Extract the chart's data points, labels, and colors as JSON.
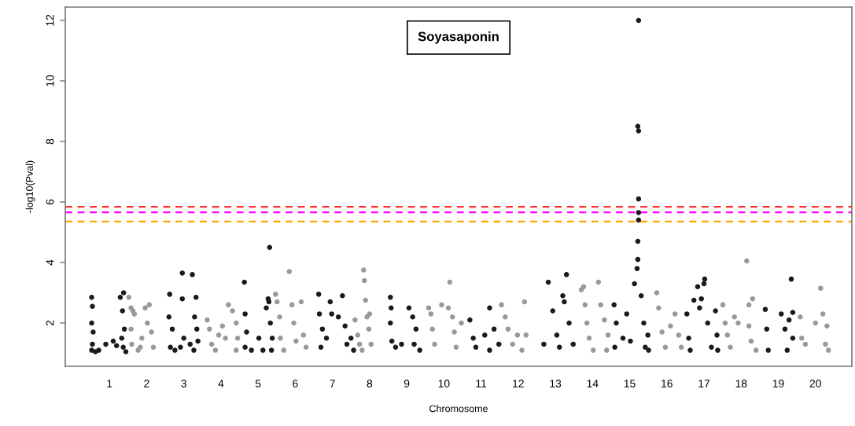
{
  "chart_data": {
    "type": "scatter",
    "title": "Soyasaponin",
    "xlabel": "Chromosome",
    "ylabel": "-log10(Pval)",
    "xlim": [
      -0.19,
      20.98
    ],
    "ylim": [
      0.57,
      12.44
    ],
    "yticks": [
      2,
      4,
      6,
      8,
      10,
      12
    ],
    "xticks": [
      1,
      2,
      3,
      4,
      5,
      6,
      7,
      8,
      9,
      10,
      11,
      12,
      13,
      14,
      15,
      16,
      17,
      18,
      19,
      20
    ],
    "marker": "circle",
    "grid": false,
    "ref_lines": [
      {
        "axis": "y",
        "value": 5.84,
        "label": null,
        "color": "#ff3030",
        "line_style": "dashed"
      },
      {
        "axis": "y",
        "value": 5.66,
        "label": null,
        "color": "#ff00ff",
        "line_style": "dashed"
      },
      {
        "axis": "y",
        "value": 5.35,
        "label": null,
        "color": "#ffa500",
        "line_style": "dashed"
      }
    ],
    "series": [
      {
        "color": "#1a1a1a",
        "x": [
          0.52,
          0.54,
          0.52,
          0.56,
          0.54,
          0.52,
          0.62,
          0.71,
          0.9,
          1.1,
          1.19,
          1.29,
          1.38,
          1.35,
          1.4,
          1.37,
          1.44,
          1.33,
          2.62,
          2.6,
          2.69,
          2.64,
          2.76,
          2.96,
          2.96,
          3.0,
          2.91,
          3.17,
          3.23,
          3.33,
          3.29,
          3.35,
          3.27,
          3.38,
          4.63,
          4.65,
          4.69,
          4.65,
          4.82,
          5.02,
          5.13,
          5.22,
          5.27,
          5.31,
          5.29,
          5.33,
          5.38,
          5.36,
          6.63,
          6.65,
          6.73,
          6.69,
          6.84,
          6.94,
          6.98,
          7.16,
          7.27,
          7.34,
          7.5,
          7.57,
          7.39,
          8.56,
          8.58,
          8.56,
          8.6,
          8.7,
          8.86,
          9.06,
          9.16,
          9.25,
          9.2,
          9.35,
          10.7,
          10.79,
          10.86,
          11.1,
          11.23,
          11.35,
          11.48,
          11.23,
          12.81,
          12.93,
          13.04,
          13.11,
          13.2,
          13.24,
          13.3,
          13.37,
          13.48,
          12.69,
          14.58,
          14.64,
          14.6,
          14.82,
          14.92,
          15.13,
          15.2,
          15.22,
          15.22,
          15.24,
          15.24,
          15.24,
          15.24,
          15.22,
          15.24,
          15.31,
          15.38,
          15.42,
          15.49,
          15.51,
          15.02,
          16.54,
          16.59,
          16.63,
          16.73,
          16.83,
          16.88,
          16.93,
          17.02,
          17.0,
          17.1,
          17.2,
          17.31,
          17.35,
          17.37,
          18.65,
          18.69,
          18.73,
          19.08,
          19.18,
          19.29,
          19.39,
          19.39,
          19.35,
          19.24
        ],
        "values": [
          2.85,
          2.55,
          2.0,
          1.7,
          1.3,
          1.1,
          1.05,
          1.1,
          1.3,
          1.4,
          1.25,
          2.85,
          3.0,
          2.4,
          1.8,
          1.2,
          1.05,
          1.5,
          2.95,
          2.2,
          1.8,
          1.2,
          1.1,
          3.65,
          2.8,
          1.5,
          1.2,
          1.3,
          3.6,
          2.85,
          2.2,
          1.8,
          1.1,
          1.4,
          3.35,
          2.3,
          1.7,
          1.2,
          1.1,
          1.5,
          1.1,
          2.5,
          2.8,
          4.5,
          2.7,
          2.0,
          1.5,
          1.1,
          2.95,
          2.3,
          1.8,
          1.2,
          1.5,
          2.7,
          2.3,
          2.2,
          2.9,
          1.9,
          1.5,
          1.1,
          1.3,
          2.85,
          2.5,
          2.0,
          1.4,
          1.2,
          1.3,
          2.5,
          2.2,
          1.8,
          1.3,
          1.1,
          2.1,
          1.5,
          1.2,
          1.6,
          2.5,
          1.8,
          1.3,
          1.1,
          3.35,
          2.4,
          1.6,
          1.2,
          2.9,
          2.7,
          3.6,
          2.0,
          1.3,
          1.3,
          2.6,
          2.0,
          1.2,
          1.5,
          2.3,
          3.3,
          3.8,
          4.1,
          4.7,
          5.4,
          5.65,
          6.1,
          8.35,
          8.5,
          12.0,
          2.9,
          2.0,
          1.2,
          1.6,
          1.1,
          1.4,
          2.3,
          1.5,
          1.1,
          2.75,
          3.2,
          2.5,
          2.8,
          3.45,
          3.3,
          2.0,
          1.2,
          2.4,
          1.6,
          1.1,
          2.45,
          1.8,
          1.1,
          2.3,
          1.8,
          2.1,
          2.35,
          1.5,
          3.45,
          1.1
        ]
      },
      {
        "color": "#999999",
        "x": [
          1.52,
          1.58,
          1.63,
          1.67,
          1.58,
          1.6,
          1.77,
          1.87,
          1.96,
          2.07,
          2.02,
          2.13,
          2.18,
          1.83,
          3.63,
          3.69,
          3.75,
          3.85,
          4.04,
          4.12,
          4.2,
          4.31,
          4.41,
          4.45,
          4.41,
          3.94,
          5.47,
          5.51,
          5.58,
          5.6,
          5.69,
          5.84,
          5.91,
          5.96,
          6.02,
          6.16,
          6.22,
          6.29,
          7.61,
          7.68,
          7.8,
          7.84,
          7.86,
          7.89,
          7.93,
          7.98,
          8.04,
          8.0,
          7.73,
          9.59,
          9.65,
          9.69,
          9.75,
          9.94,
          10.12,
          10.16,
          10.23,
          10.28,
          10.33,
          10.47,
          11.55,
          11.65,
          11.73,
          11.85,
          11.98,
          12.17,
          12.21,
          12.1,
          13.76,
          13.8,
          13.85,
          13.91,
          14.02,
          13.7,
          14.16,
          14.22,
          14.32,
          14.42,
          14.38,
          15.73,
          15.78,
          15.87,
          15.96,
          16.22,
          16.32,
          16.39,
          16.1,
          17.51,
          17.57,
          17.63,
          17.71,
          17.82,
          17.92,
          18.15,
          18.21,
          18.31,
          18.21,
          18.27,
          18.4,
          19.59,
          19.63,
          19.73,
          20.0,
          20.14,
          20.2,
          20.31,
          20.27,
          20.35
        ],
        "values": [
          2.85,
          2.5,
          2.4,
          2.3,
          1.8,
          1.3,
          1.1,
          1.5,
          2.5,
          2.6,
          2.0,
          1.7,
          1.2,
          1.2,
          2.1,
          1.8,
          1.3,
          1.1,
          1.9,
          1.5,
          2.6,
          2.4,
          2.0,
          1.5,
          1.1,
          1.6,
          2.95,
          2.7,
          2.2,
          1.5,
          1.1,
          3.7,
          2.6,
          2.0,
          1.4,
          2.7,
          1.6,
          1.2,
          2.1,
          1.6,
          1.1,
          3.75,
          3.4,
          2.75,
          2.2,
          1.8,
          1.3,
          2.3,
          1.3,
          2.5,
          2.3,
          1.8,
          1.3,
          2.6,
          2.5,
          3.35,
          2.2,
          1.7,
          1.2,
          2.0,
          2.6,
          2.2,
          1.8,
          1.3,
          1.6,
          2.7,
          1.6,
          1.1,
          3.2,
          2.6,
          2.0,
          1.5,
          1.1,
          3.1,
          3.35,
          2.6,
          2.1,
          1.6,
          1.1,
          3.0,
          2.5,
          1.7,
          1.2,
          2.3,
          1.6,
          1.2,
          1.9,
          2.6,
          2.0,
          1.6,
          1.2,
          2.2,
          2.0,
          4.05,
          2.6,
          2.8,
          1.9,
          1.4,
          1.1,
          2.2,
          1.5,
          1.3,
          2.0,
          3.15,
          2.3,
          1.9,
          1.3,
          1.1
        ]
      }
    ]
  }
}
